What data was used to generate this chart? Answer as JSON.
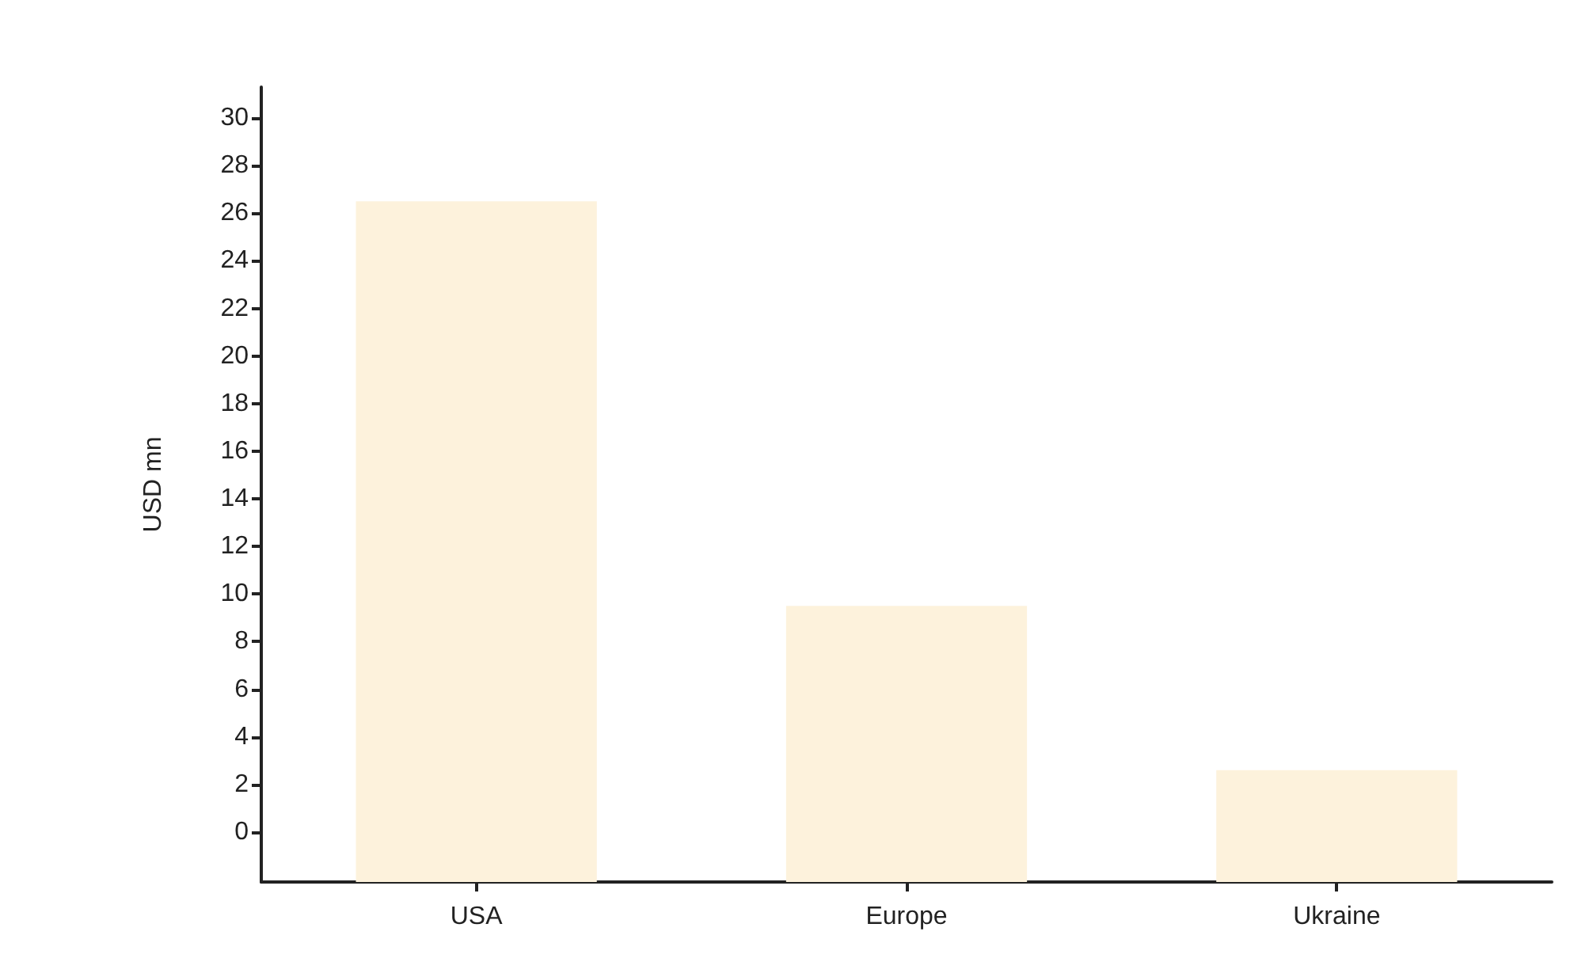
{
  "chart_data": {
    "type": "bar",
    "ylabel": "USD mn",
    "categories": [
      "USA",
      "Europe",
      "Ukraine"
    ],
    "values": [
      28.6,
      11.6,
      4.7
    ],
    "base": [
      -2.1,
      -2.1,
      -2.1
    ],
    "color": "#fdf2dc",
    "ylim": [
      -2.1,
      31.3
    ],
    "yticks": [
      0,
      2,
      4,
      6,
      8,
      10,
      12,
      14,
      16,
      18,
      20,
      22,
      24,
      26,
      28,
      30
    ],
    "grid": false
  }
}
